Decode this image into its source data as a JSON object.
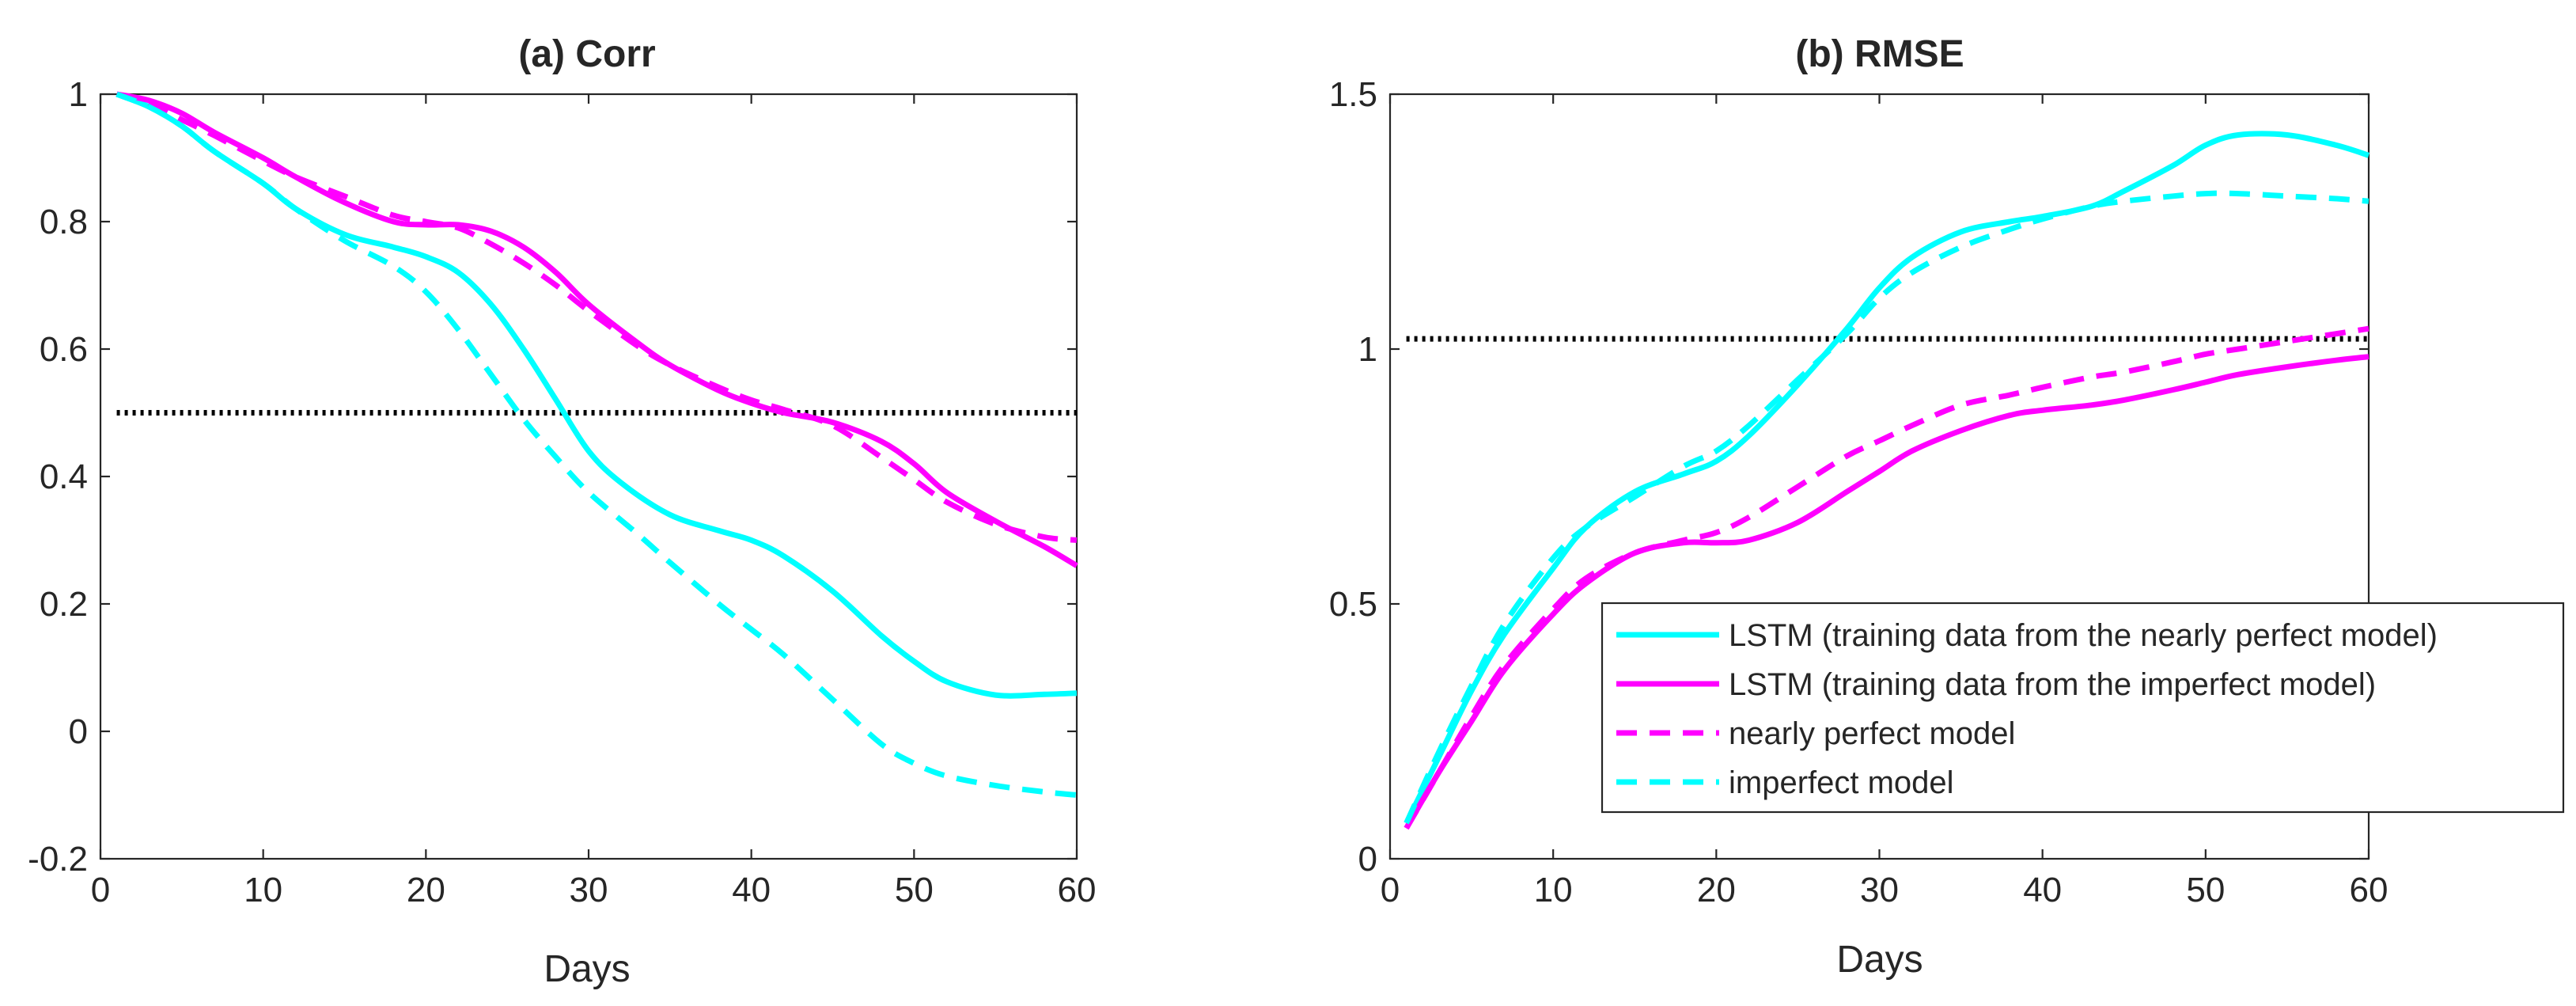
{
  "chart_data": [
    {
      "type": "line",
      "title": "(a) Corr",
      "xlabel": "Days",
      "ylabel": "",
      "xlim": [
        0,
        60
      ],
      "ylim": [
        -0.2,
        1
      ],
      "xticks": [
        0,
        10,
        20,
        30,
        40,
        50,
        60
      ],
      "yticks": [
        -0.2,
        0,
        0.2,
        0.4,
        0.6,
        0.8,
        1
      ],
      "ytick_labels": [
        "-0.2",
        "0",
        "0.2",
        "0.4",
        "0.6",
        "0.8",
        "1"
      ],
      "reference_line": {
        "y": 0.5,
        "style": "dotted",
        "color": "#000000"
      },
      "series": [
        {
          "key": "lstm_nearly",
          "style": "solid",
          "color": "#00FFFF",
          "x": [
            1,
            3,
            5,
            7,
            10,
            12,
            15,
            18,
            20,
            22,
            24,
            26,
            28,
            30,
            32,
            35,
            38,
            40,
            42,
            45,
            48,
            50,
            52,
            55,
            58,
            60
          ],
          "y": [
            1.0,
            0.98,
            0.95,
            0.91,
            0.86,
            0.82,
            0.78,
            0.76,
            0.745,
            0.72,
            0.67,
            0.6,
            0.52,
            0.44,
            0.39,
            0.34,
            0.315,
            0.3,
            0.275,
            0.22,
            0.15,
            0.11,
            0.078,
            0.057,
            0.058,
            0.06
          ]
        },
        {
          "key": "lstm_imperfect",
          "style": "solid",
          "color": "#FF00FF",
          "x": [
            1,
            3,
            5,
            7,
            10,
            12,
            15,
            18,
            20,
            22,
            24,
            26,
            28,
            30,
            33,
            35,
            38,
            40,
            42,
            45,
            48,
            50,
            52,
            55,
            58,
            60
          ],
          "y": [
            1.0,
            0.99,
            0.97,
            0.94,
            0.9,
            0.87,
            0.83,
            0.8,
            0.795,
            0.795,
            0.785,
            0.76,
            0.72,
            0.67,
            0.61,
            0.575,
            0.535,
            0.515,
            0.5,
            0.485,
            0.455,
            0.42,
            0.375,
            0.33,
            0.29,
            0.26
          ]
        },
        {
          "key": "nearly_perfect_model",
          "style": "dashed",
          "color": "#FF00FF",
          "x": [
            1,
            3,
            5,
            7,
            10,
            12,
            15,
            18,
            20,
            22,
            24,
            26,
            28,
            30,
            33,
            35,
            38,
            40,
            42,
            45,
            48,
            50,
            52,
            55,
            58,
            60
          ],
          "y": [
            1.0,
            0.985,
            0.96,
            0.935,
            0.895,
            0.87,
            0.84,
            0.81,
            0.8,
            0.79,
            0.765,
            0.735,
            0.7,
            0.66,
            0.605,
            0.575,
            0.54,
            0.52,
            0.505,
            0.48,
            0.43,
            0.395,
            0.36,
            0.325,
            0.305,
            0.3
          ]
        },
        {
          "key": "imperfect_model",
          "style": "dashed",
          "color": "#00FFFF",
          "x": [
            1,
            3,
            5,
            7,
            10,
            12,
            15,
            18,
            20,
            22,
            24,
            26,
            28,
            30,
            33,
            35,
            38,
            40,
            42,
            45,
            48,
            50,
            52,
            55,
            58,
            60
          ],
          "y": [
            1.0,
            0.98,
            0.95,
            0.91,
            0.86,
            0.82,
            0.77,
            0.73,
            0.69,
            0.63,
            0.56,
            0.49,
            0.43,
            0.375,
            0.31,
            0.265,
            0.2,
            0.16,
            0.12,
            0.05,
            -0.02,
            -0.05,
            -0.07,
            -0.085,
            -0.095,
            -0.1
          ]
        }
      ]
    },
    {
      "type": "line",
      "title": "(b) RMSE",
      "xlabel": "Days",
      "ylabel": "",
      "xlim": [
        0,
        60
      ],
      "ylim": [
        0,
        1.5
      ],
      "xticks": [
        0,
        10,
        20,
        30,
        40,
        50,
        60
      ],
      "yticks": [
        0,
        0.5,
        1,
        1.5
      ],
      "ytick_labels": [
        "0",
        "0.5",
        "1",
        "1.5"
      ],
      "reference_line": {
        "y": 1.02,
        "style": "dotted",
        "color": "#000000"
      },
      "legend": {
        "placement": "bottom-right",
        "entries": [
          {
            "label": "LSTM (training data from the nearly perfect model)",
            "style": "solid",
            "color": "#00FFFF"
          },
          {
            "label": "LSTM (training data from the imperfect model)",
            "style": "solid",
            "color": "#FF00FF"
          },
          {
            "label": "nearly perfect model",
            "style": "dashed",
            "color": "#FF00FF"
          },
          {
            "label": "imperfect model",
            "style": "dashed",
            "color": "#00FFFF"
          }
        ]
      },
      "series": [
        {
          "key": "lstm_nearly",
          "style": "solid",
          "color": "#00FFFF",
          "x": [
            1,
            3,
            5,
            7,
            10,
            12,
            15,
            18,
            20,
            22,
            25,
            28,
            30,
            32,
            35,
            38,
            40,
            43,
            45,
            48,
            50,
            52,
            55,
            58,
            60
          ],
          "y": [
            0.07,
            0.2,
            0.33,
            0.44,
            0.57,
            0.65,
            0.72,
            0.755,
            0.78,
            0.83,
            0.93,
            1.04,
            1.12,
            1.18,
            1.23,
            1.25,
            1.26,
            1.28,
            1.31,
            1.36,
            1.4,
            1.42,
            1.42,
            1.4,
            1.38
          ]
        },
        {
          "key": "lstm_imperfect",
          "style": "solid",
          "color": "#FF00FF",
          "x": [
            1,
            3,
            5,
            7,
            10,
            12,
            15,
            18,
            20,
            22,
            25,
            28,
            30,
            32,
            35,
            38,
            40,
            43,
            45,
            48,
            50,
            52,
            55,
            58,
            60
          ],
          "y": [
            0.06,
            0.17,
            0.27,
            0.37,
            0.48,
            0.54,
            0.6,
            0.62,
            0.62,
            0.625,
            0.66,
            0.72,
            0.76,
            0.8,
            0.84,
            0.87,
            0.88,
            0.89,
            0.9,
            0.92,
            0.935,
            0.95,
            0.965,
            0.978,
            0.985
          ]
        },
        {
          "key": "nearly_perfect_model",
          "style": "dashed",
          "color": "#FF00FF",
          "x": [
            1,
            3,
            5,
            7,
            10,
            12,
            15,
            18,
            20,
            22,
            25,
            28,
            30,
            32,
            35,
            38,
            40,
            43,
            45,
            48,
            50,
            52,
            55,
            58,
            60
          ],
          "y": [
            0.06,
            0.17,
            0.28,
            0.38,
            0.49,
            0.55,
            0.6,
            0.625,
            0.64,
            0.67,
            0.73,
            0.79,
            0.82,
            0.85,
            0.89,
            0.91,
            0.925,
            0.945,
            0.955,
            0.975,
            0.99,
            1.0,
            1.015,
            1.03,
            1.04
          ]
        },
        {
          "key": "imperfect_model",
          "style": "dashed",
          "color": "#00FFFF",
          "x": [
            1,
            3,
            5,
            7,
            10,
            12,
            15,
            18,
            20,
            22,
            25,
            28,
            30,
            32,
            35,
            38,
            40,
            43,
            45,
            48,
            50,
            52,
            55,
            58,
            60
          ],
          "y": [
            0.07,
            0.21,
            0.34,
            0.46,
            0.59,
            0.65,
            0.71,
            0.77,
            0.8,
            0.85,
            0.94,
            1.03,
            1.1,
            1.15,
            1.2,
            1.235,
            1.255,
            1.28,
            1.29,
            1.3,
            1.305,
            1.305,
            1.3,
            1.295,
            1.29
          ]
        }
      ]
    }
  ]
}
